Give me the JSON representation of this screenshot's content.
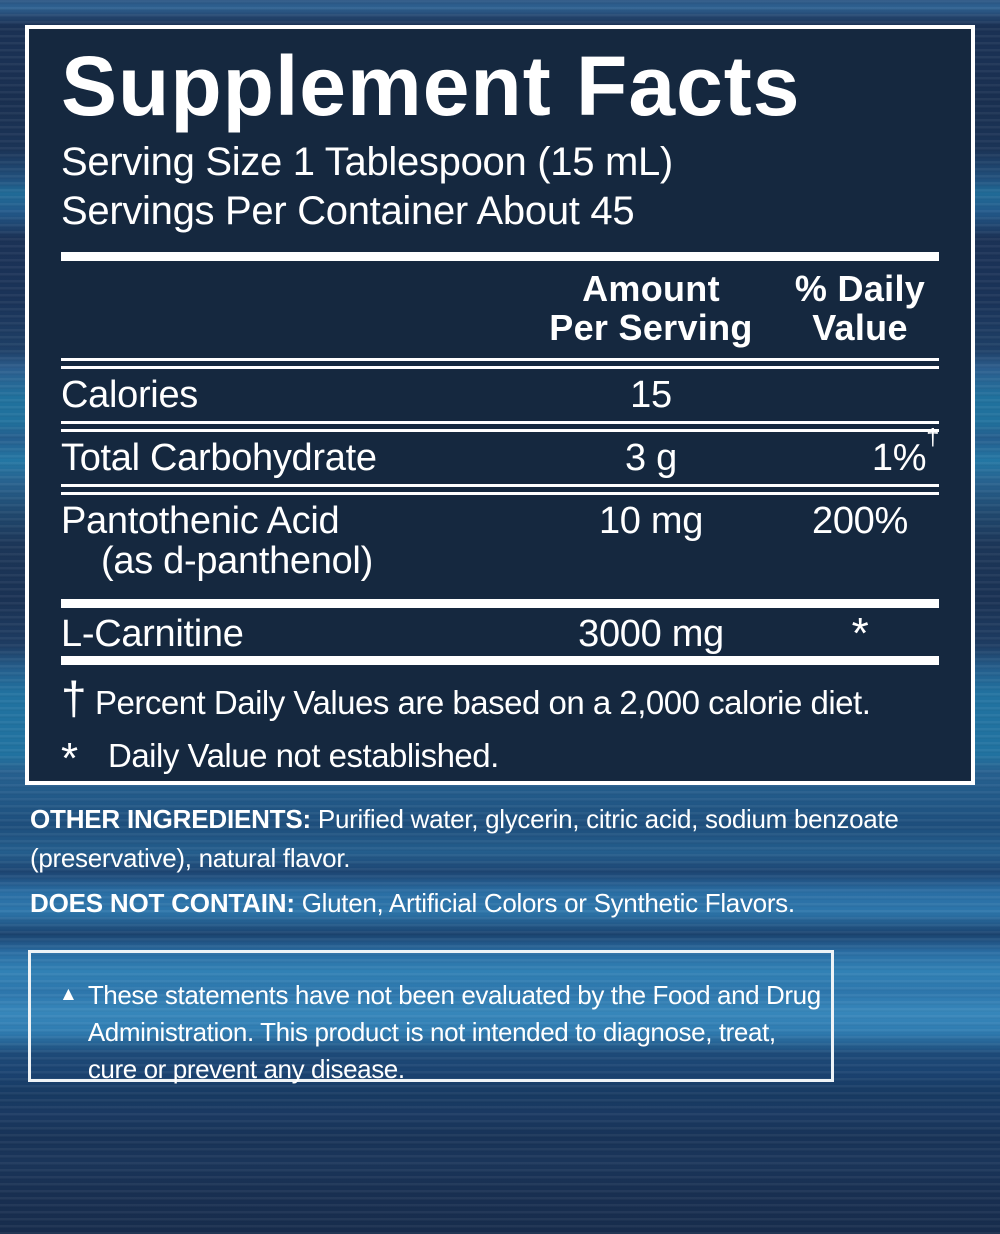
{
  "colors": {
    "panel_bg": "#15283f",
    "panel_border": "#ffffff",
    "text": "#ffffff",
    "bg_navy": "#1a3254",
    "bg_stripe_teal": "#2172a0",
    "bg_stripe_bright": "#3787bb"
  },
  "supplement_facts": {
    "title": "Supplement Facts",
    "serving_size": "Serving Size 1 Tablespoon (15 mL)",
    "servings_per_container": "Servings Per Container About 45",
    "columns": {
      "amount_line1": "Amount",
      "amount_line2": "Per Serving",
      "daily_value_line1": "% Daily",
      "daily_value_line2": "Value"
    },
    "rows": [
      {
        "name": "Calories",
        "amount": "15",
        "daily_value": ""
      },
      {
        "name": "Total Carbohydrate",
        "amount": "3 g",
        "daily_value": "1%",
        "daily_value_sup": "†"
      },
      {
        "name": "Pantothenic Acid",
        "name_sub": "(as d-panthenol)",
        "amount": "10 mg",
        "daily_value": "200%"
      },
      {
        "name": "L-Carnitine",
        "amount": "3000 mg",
        "daily_value": "*"
      }
    ],
    "footnotes": [
      {
        "symbol": "†",
        "text": "Percent Daily Values are based on a 2,000 calorie diet."
      },
      {
        "symbol": "*",
        "text": "Daily Value not established."
      }
    ]
  },
  "other_ingredients": {
    "label": "OTHER INGREDIENTS:",
    "lines": [
      "Purified water, glycerin, citric acid, sodium benzoate",
      "(preservative), natural flavor."
    ]
  },
  "does_not_contain": {
    "label": "DOES NOT CONTAIN:",
    "text": "Gluten, Artificial Colors or Synthetic Flavors."
  },
  "disclaimer": {
    "marker": "▲",
    "lines": [
      "These statements have not been evaluated by the Food and Drug",
      "Administration. This product is not intended to diagnose, treat,",
      "cure or prevent any disease."
    ]
  }
}
